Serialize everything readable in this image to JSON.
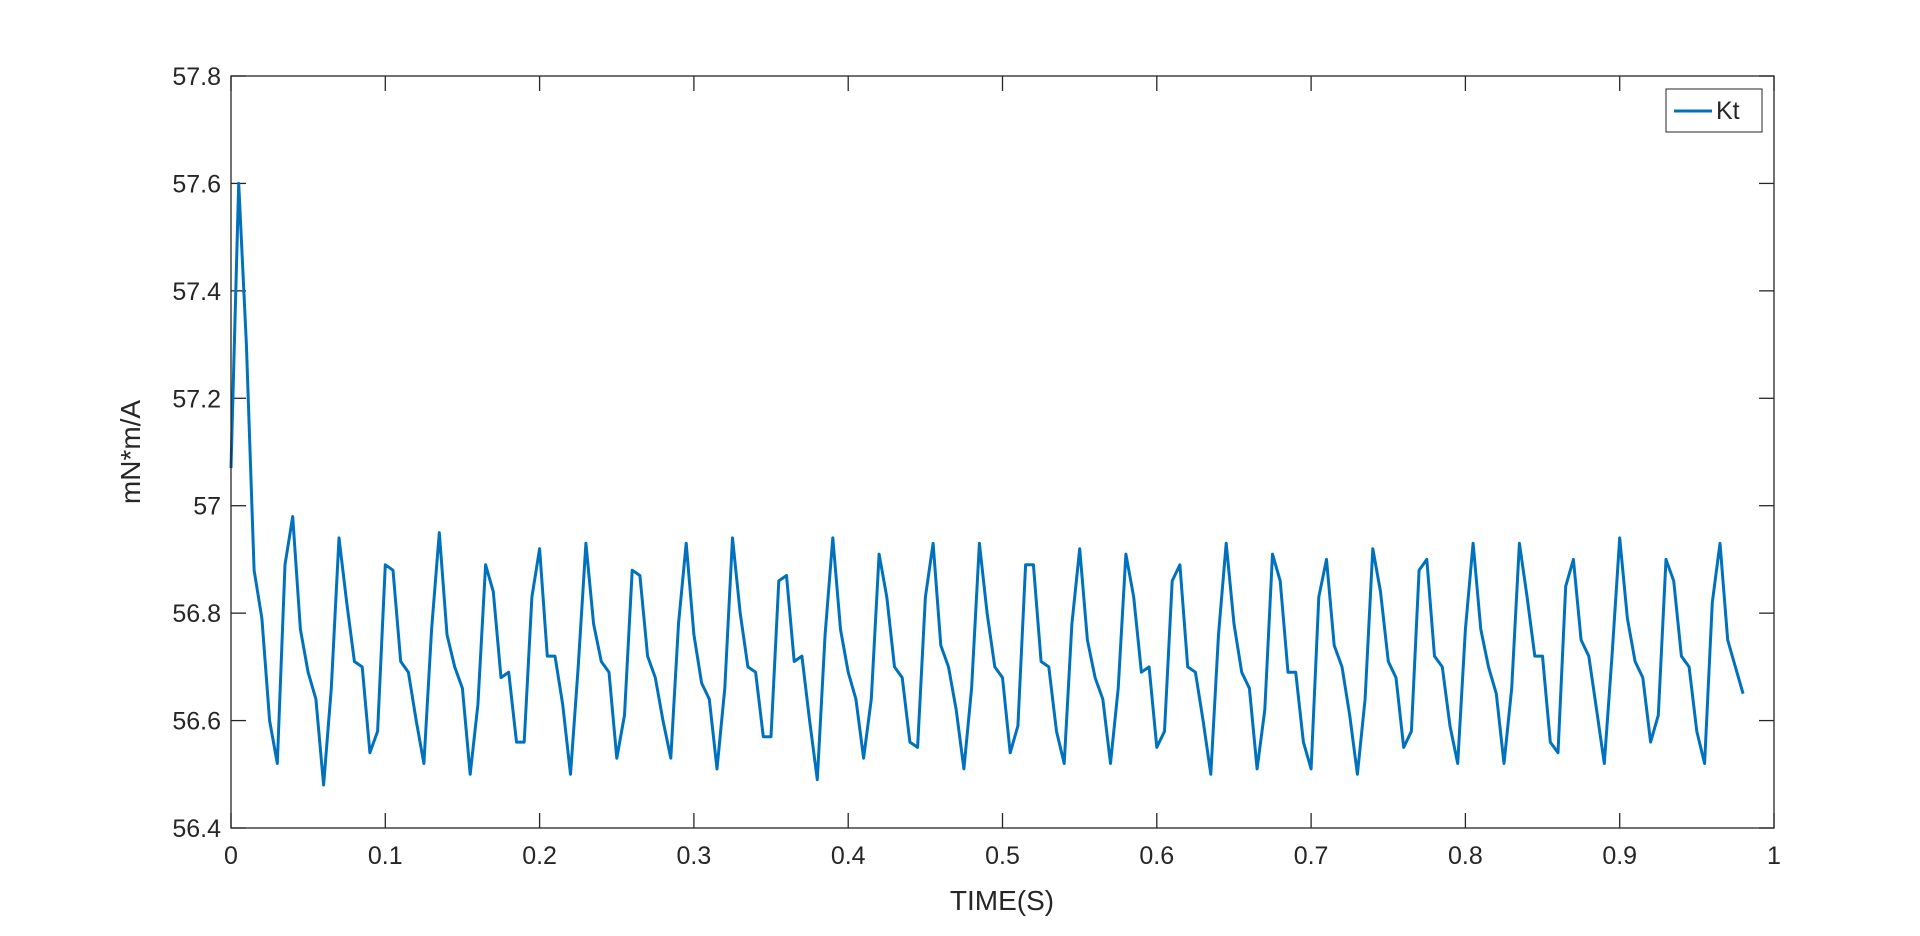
{
  "chart_data": {
    "type": "line",
    "title": "",
    "xlabel": "TIME(S)",
    "ylabel": "mN*m/A",
    "xlim": [
      0,
      1
    ],
    "ylim": [
      56.4,
      57.8
    ],
    "xticks": [
      "0",
      "0.1",
      "0.2",
      "0.3",
      "0.4",
      "0.5",
      "0.6",
      "0.7",
      "0.8",
      "0.9",
      "1"
    ],
    "yticks": [
      "56.4",
      "56.6",
      "56.8",
      "57",
      "57.2",
      "57.4",
      "57.6",
      "57.8"
    ],
    "grid": false,
    "legend_position": "top-right",
    "series": [
      {
        "name": "Kt",
        "color": "#0072BD",
        "x": [
          0,
          0.005,
          0.01,
          0.015,
          0.02,
          0.025,
          0.03,
          0.035,
          0.04,
          0.045,
          0.05,
          0.055,
          0.06,
          0.065,
          0.07,
          0.075,
          0.08,
          0.085,
          0.09,
          0.095,
          0.1,
          0.105,
          0.11,
          0.115,
          0.12,
          0.125,
          0.13,
          0.135,
          0.14,
          0.145,
          0.15,
          0.155,
          0.16,
          0.165,
          0.17,
          0.175,
          0.18,
          0.185,
          0.19,
          0.195,
          0.2,
          0.205,
          0.21,
          0.215,
          0.22,
          0.225,
          0.23,
          0.235,
          0.24,
          0.245,
          0.25,
          0.255,
          0.26,
          0.265,
          0.27,
          0.275,
          0.28,
          0.285,
          0.29,
          0.295,
          0.3,
          0.305,
          0.31,
          0.315,
          0.32,
          0.325,
          0.33,
          0.335,
          0.34,
          0.345,
          0.35,
          0.355,
          0.36,
          0.365,
          0.37,
          0.375,
          0.38,
          0.385,
          0.39,
          0.395,
          0.4,
          0.405,
          0.41,
          0.415,
          0.42,
          0.425,
          0.43,
          0.435,
          0.44,
          0.445,
          0.45,
          0.455,
          0.46,
          0.465,
          0.47,
          0.475,
          0.48,
          0.485,
          0.49,
          0.495,
          0.5,
          0.505,
          0.51,
          0.515,
          0.52,
          0.525,
          0.53,
          0.535,
          0.54,
          0.545,
          0.55,
          0.555,
          0.56,
          0.565,
          0.57,
          0.575,
          0.58,
          0.585,
          0.59,
          0.595,
          0.6,
          0.605,
          0.61,
          0.615,
          0.62,
          0.625,
          0.63,
          0.635,
          0.64,
          0.645,
          0.65,
          0.655,
          0.66,
          0.665,
          0.67,
          0.675,
          0.68,
          0.685,
          0.69,
          0.695,
          0.7,
          0.705,
          0.71,
          0.715,
          0.72,
          0.725,
          0.73,
          0.735,
          0.74,
          0.745,
          0.75,
          0.755,
          0.76,
          0.765,
          0.77,
          0.775,
          0.78,
          0.785,
          0.79,
          0.795,
          0.8,
          0.805,
          0.81,
          0.815,
          0.82,
          0.825,
          0.83,
          0.835,
          0.84,
          0.845,
          0.85,
          0.855,
          0.86,
          0.865,
          0.87,
          0.875,
          0.88,
          0.885,
          0.89,
          0.895,
          0.9,
          0.905,
          0.91,
          0.915,
          0.92,
          0.925,
          0.93,
          0.935,
          0.94,
          0.945,
          0.95,
          0.955,
          0.96,
          0.965,
          0.97,
          0.975,
          0.98
        ],
        "values": [
          57.07,
          57.6,
          57.3,
          56.88,
          56.79,
          56.6,
          56.52,
          56.89,
          56.98,
          56.77,
          56.69,
          56.64,
          56.48,
          56.66,
          56.94,
          56.82,
          56.71,
          56.7,
          56.54,
          56.58,
          56.89,
          56.88,
          56.71,
          56.69,
          56.6,
          56.52,
          56.77,
          56.95,
          56.76,
          56.7,
          56.66,
          56.5,
          56.63,
          56.89,
          56.84,
          56.68,
          56.69,
          56.56,
          56.56,
          56.83,
          56.92,
          56.72,
          56.72,
          56.63,
          56.5,
          56.7,
          56.93,
          56.78,
          56.71,
          56.69,
          56.53,
          56.61,
          56.88,
          56.87,
          56.72,
          56.68,
          56.6,
          56.53,
          56.78,
          56.93,
          56.76,
          56.67,
          56.64,
          56.51,
          56.66,
          56.94,
          56.8,
          56.7,
          56.69,
          56.57,
          56.57,
          56.86,
          56.87,
          56.71,
          56.72,
          56.6,
          56.49,
          56.76,
          56.94,
          56.77,
          56.69,
          56.64,
          56.53,
          56.64,
          56.91,
          56.83,
          56.7,
          56.68,
          56.56,
          56.55,
          56.83,
          56.93,
          56.74,
          56.7,
          56.62,
          56.51,
          56.66,
          56.93,
          56.8,
          56.7,
          56.68,
          56.54,
          56.59,
          56.89,
          56.89,
          56.71,
          56.7,
          56.58,
          56.52,
          56.78,
          56.92,
          56.75,
          56.68,
          56.64,
          56.52,
          56.66,
          56.91,
          56.83,
          56.69,
          56.7,
          56.55,
          56.58,
          56.86,
          56.89,
          56.7,
          56.69,
          56.6,
          56.5,
          56.76,
          56.93,
          56.78,
          56.69,
          56.66,
          56.51,
          56.62,
          56.91,
          56.86,
          56.69,
          56.69,
          56.56,
          56.51,
          56.83,
          56.9,
          56.74,
          56.7,
          56.61,
          56.5,
          56.64,
          56.92,
          56.84,
          56.71,
          56.68,
          56.55,
          56.58,
          56.88,
          56.9,
          56.72,
          56.7,
          56.59,
          56.52,
          56.77,
          56.93,
          56.77,
          56.7,
          56.65,
          56.52,
          56.66,
          56.93,
          56.83,
          56.72,
          56.72,
          56.56,
          56.54,
          56.85,
          56.9,
          56.75,
          56.72,
          56.62,
          56.52,
          56.72,
          56.94,
          56.79,
          56.71,
          56.68,
          56.56,
          56.61,
          56.9,
          56.86,
          56.72,
          56.7,
          56.58,
          56.52,
          56.82,
          56.93,
          56.75,
          56.7,
          56.65
        ]
      }
    ]
  }
}
